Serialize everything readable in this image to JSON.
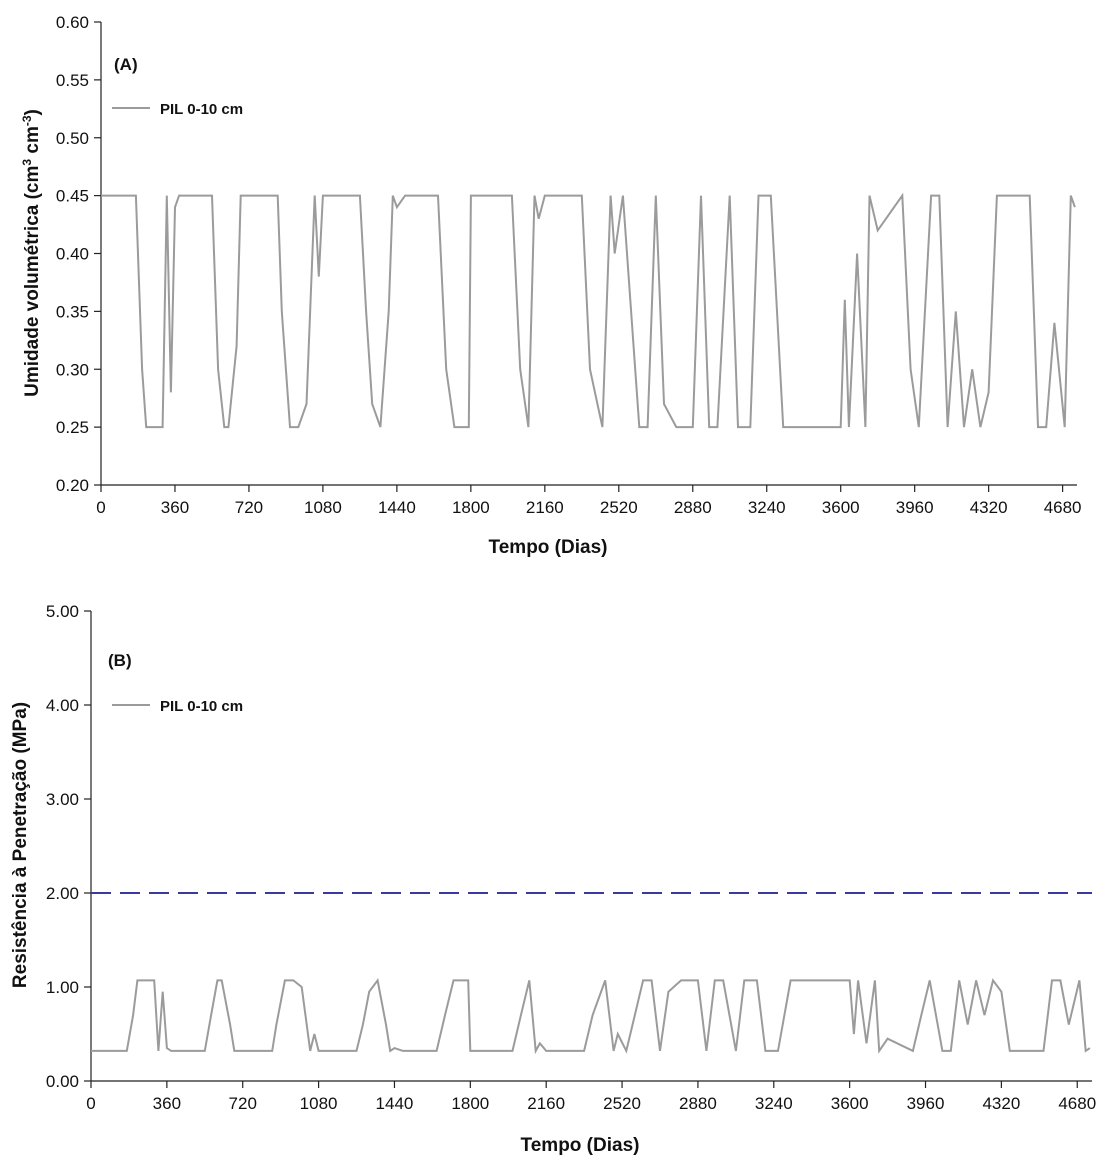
{
  "chart_data": [
    {
      "type": "line",
      "panel_label": "(A)",
      "xlabel": "Tempo (Dias)",
      "ylabel_main": "Umidade volumétrica (cm",
      "ylabel_sup1": "3",
      "ylabel_mid": " cm",
      "ylabel_sup2": "-3",
      "ylabel_end": ")",
      "xlim": [
        0,
        4750
      ],
      "ylim": [
        0.2,
        0.6
      ],
      "xticks": [
        0,
        360,
        720,
        1080,
        1440,
        1800,
        2160,
        2520,
        2880,
        3240,
        3600,
        3960,
        4320,
        4680
      ],
      "yticks": [
        "0.20",
        "0.25",
        "0.30",
        "0.35",
        "0.40",
        "0.45",
        "0.50",
        "0.55",
        "0.60"
      ],
      "legend_position": "top-left",
      "series": [
        {
          "name": "PIL 0-10 cm",
          "color": "#9b9b9b",
          "x": [
            0,
            170,
            200,
            220,
            260,
            300,
            320,
            340,
            360,
            380,
            420,
            540,
            570,
            600,
            620,
            660,
            680,
            700,
            720,
            760,
            860,
            880,
            920,
            960,
            1000,
            1040,
            1060,
            1080,
            1100,
            1260,
            1290,
            1320,
            1360,
            1400,
            1420,
            1440,
            1480,
            1640,
            1680,
            1720,
            1760,
            1790,
            1800,
            2000,
            2040,
            2080,
            2110,
            2130,
            2160,
            2340,
            2380,
            2440,
            2480,
            2500,
            2540,
            2620,
            2660,
            2700,
            2740,
            2800,
            2880,
            2920,
            2960,
            3000,
            3060,
            3100,
            3160,
            3200,
            3260,
            3320,
            3360,
            3600,
            3620,
            3640,
            3680,
            3720,
            3740,
            3780,
            3900,
            3940,
            3980,
            4040,
            4080,
            4120,
            4160,
            4200,
            4240,
            4280,
            4320,
            4360,
            4400,
            4520,
            4560,
            4600,
            4640,
            4690,
            4720,
            4740
          ],
          "y": [
            0.45,
            0.45,
            0.3,
            0.25,
            0.25,
            0.25,
            0.45,
            0.28,
            0.44,
            0.45,
            0.45,
            0.45,
            0.3,
            0.25,
            0.25,
            0.32,
            0.45,
            0.45,
            0.45,
            0.45,
            0.45,
            0.35,
            0.25,
            0.25,
            0.27,
            0.45,
            0.38,
            0.45,
            0.45,
            0.45,
            0.35,
            0.27,
            0.25,
            0.35,
            0.45,
            0.44,
            0.45,
            0.45,
            0.3,
            0.25,
            0.25,
            0.25,
            0.45,
            0.45,
            0.3,
            0.25,
            0.45,
            0.43,
            0.45,
            0.45,
            0.3,
            0.25,
            0.45,
            0.4,
            0.45,
            0.25,
            0.25,
            0.45,
            0.27,
            0.25,
            0.25,
            0.45,
            0.25,
            0.25,
            0.45,
            0.25,
            0.25,
            0.45,
            0.45,
            0.25,
            0.25,
            0.25,
            0.36,
            0.25,
            0.4,
            0.25,
            0.45,
            0.42,
            0.45,
            0.3,
            0.25,
            0.45,
            0.45,
            0.25,
            0.35,
            0.25,
            0.3,
            0.25,
            0.28,
            0.45,
            0.45,
            0.45,
            0.25,
            0.25,
            0.34,
            0.25,
            0.45,
            0.44
          ]
        }
      ]
    },
    {
      "type": "line",
      "panel_label": "(B)",
      "xlabel": "Tempo (Dias)",
      "ylabel": "Resistência à Penetração (MPa)",
      "xlim": [
        0,
        4750
      ],
      "ylim": [
        0,
        5
      ],
      "xticks": [
        0,
        360,
        720,
        1080,
        1440,
        1800,
        2160,
        2520,
        2880,
        3240,
        3600,
        3960,
        4320,
        4680
      ],
      "yticks": [
        "0.00",
        "1.00",
        "2.00",
        "3.00",
        "4.00",
        "5.00"
      ],
      "legend_position": "top-left",
      "reference_line": {
        "y": 2.0,
        "color": "#3a3a9e",
        "style": "dashed"
      },
      "series": [
        {
          "name": "PIL 0-10 cm",
          "color": "#9b9b9b",
          "x": [
            0,
            170,
            200,
            220,
            260,
            300,
            320,
            340,
            360,
            380,
            420,
            540,
            570,
            600,
            620,
            660,
            680,
            700,
            720,
            760,
            860,
            880,
            920,
            960,
            1000,
            1040,
            1060,
            1080,
            1100,
            1260,
            1290,
            1320,
            1360,
            1400,
            1420,
            1440,
            1480,
            1640,
            1680,
            1720,
            1760,
            1790,
            1800,
            2000,
            2040,
            2080,
            2110,
            2130,
            2160,
            2340,
            2380,
            2440,
            2480,
            2500,
            2540,
            2620,
            2660,
            2700,
            2740,
            2800,
            2880,
            2920,
            2960,
            3000,
            3060,
            3100,
            3160,
            3200,
            3260,
            3320,
            3360,
            3600,
            3620,
            3640,
            3680,
            3720,
            3740,
            3780,
            3900,
            3940,
            3980,
            4040,
            4080,
            4120,
            4160,
            4200,
            4240,
            4280,
            4320,
            4360,
            4400,
            4520,
            4560,
            4600,
            4640,
            4690,
            4720,
            4740
          ],
          "y": [
            0.32,
            0.32,
            0.7,
            1.07,
            1.07,
            1.07,
            0.32,
            0.95,
            0.35,
            0.32,
            0.32,
            0.32,
            0.7,
            1.07,
            1.07,
            0.6,
            0.32,
            0.32,
            0.32,
            0.32,
            0.32,
            0.6,
            1.07,
            1.07,
            1.0,
            0.32,
            0.5,
            0.32,
            0.32,
            0.32,
            0.6,
            0.95,
            1.07,
            0.6,
            0.32,
            0.35,
            0.32,
            0.32,
            0.7,
            1.07,
            1.07,
            1.07,
            0.32,
            0.32,
            0.7,
            1.07,
            0.32,
            0.4,
            0.32,
            0.32,
            0.7,
            1.07,
            0.32,
            0.5,
            0.32,
            1.07,
            1.07,
            0.32,
            0.95,
            1.07,
            1.07,
            0.32,
            1.07,
            1.07,
            0.32,
            1.07,
            1.07,
            0.32,
            0.32,
            1.07,
            1.07,
            1.07,
            0.5,
            1.07,
            0.4,
            1.07,
            0.32,
            0.45,
            0.32,
            0.7,
            1.07,
            0.32,
            0.32,
            1.07,
            0.6,
            1.07,
            0.7,
            1.07,
            0.95,
            0.32,
            0.32,
            0.32,
            1.07,
            1.07,
            0.6,
            1.07,
            0.32,
            0.35
          ]
        }
      ]
    }
  ]
}
